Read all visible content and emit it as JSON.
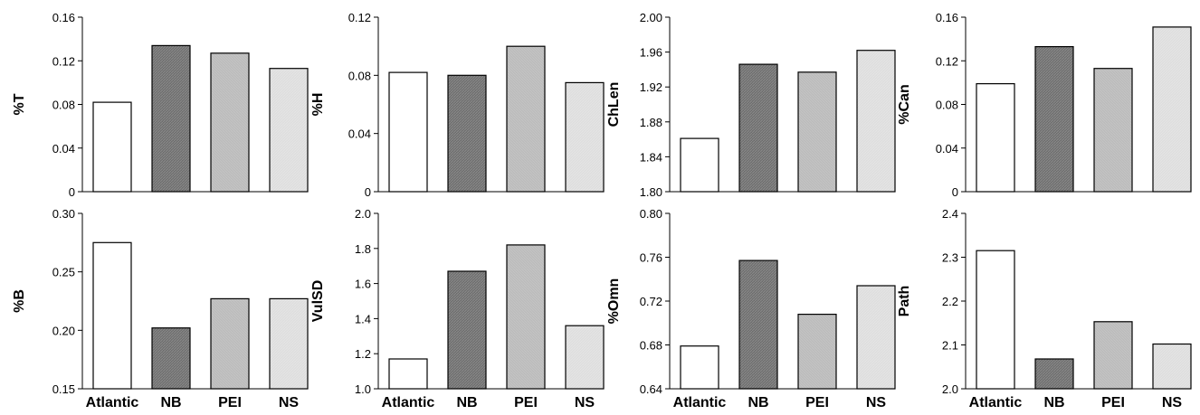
{
  "chart_data": [
    {
      "type": "bar",
      "ylabel": "%T",
      "categories": [
        "Atlantic",
        "NB",
        "PEI",
        "NS"
      ],
      "values": [
        0.082,
        0.134,
        0.127,
        0.113
      ],
      "ylim": [
        0,
        0.16
      ],
      "yticks": [
        "0",
        "0.04",
        "0.08",
        "0.12",
        "0.16"
      ],
      "grid": false
    },
    {
      "type": "bar",
      "ylabel": "%H",
      "categories": [
        "Atlantic",
        "NB",
        "PEI",
        "NS"
      ],
      "values": [
        0.082,
        0.08,
        0.1,
        0.075
      ],
      "ylim": [
        0,
        0.12
      ],
      "yticks": [
        "0",
        "0.04",
        "0.08",
        "0.12"
      ],
      "grid": false
    },
    {
      "type": "bar",
      "ylabel": "ChLen",
      "categories": [
        "Atlantic",
        "NB",
        "PEI",
        "NS"
      ],
      "values": [
        1.861,
        1.946,
        1.937,
        1.962
      ],
      "ylim": [
        1.8,
        2.0
      ],
      "yticks": [
        "1.80",
        "1.84",
        "1.88",
        "1.92",
        "1.96",
        "2.00"
      ],
      "grid": false
    },
    {
      "type": "bar",
      "ylabel": "%Can",
      "categories": [
        "Atlantic",
        "NB",
        "PEI",
        "NS"
      ],
      "values": [
        0.099,
        0.133,
        0.113,
        0.151
      ],
      "ylim": [
        0,
        0.16
      ],
      "yticks": [
        "0",
        "0.04",
        "0.08",
        "0.12",
        "0.16"
      ],
      "grid": false
    },
    {
      "type": "bar",
      "ylabel": "%B",
      "categories": [
        "Atlantic",
        "NB",
        "PEI",
        "NS"
      ],
      "values": [
        0.275,
        0.202,
        0.227,
        0.227
      ],
      "ylim": [
        0.15,
        0.3
      ],
      "yticks": [
        "0.15",
        "0.20",
        "0.25",
        "0.30"
      ],
      "grid": false
    },
    {
      "type": "bar",
      "ylabel": "VulSD",
      "categories": [
        "Atlantic",
        "NB",
        "PEI",
        "NS"
      ],
      "values": [
        1.17,
        1.67,
        1.82,
        1.36
      ],
      "ylim": [
        1.0,
        2.0
      ],
      "yticks": [
        "1.0",
        "1.2",
        "1.4",
        "1.6",
        "1.8",
        "2.0"
      ],
      "grid": false
    },
    {
      "type": "bar",
      "ylabel": "%Omn",
      "categories": [
        "Atlantic",
        "NB",
        "PEI",
        "NS"
      ],
      "values": [
        0.679,
        0.757,
        0.708,
        0.734
      ],
      "ylim": [
        0.64,
        0.8
      ],
      "yticks": [
        "0.64",
        "0.68",
        "0.72",
        "0.76",
        "0.80"
      ],
      "grid": false
    },
    {
      "type": "bar",
      "ylabel": "Path",
      "categories": [
        "Atlantic",
        "NB",
        "PEI",
        "NS"
      ],
      "values": [
        2.315,
        2.068,
        2.153,
        2.102
      ],
      "ylim": [
        2.0,
        2.4
      ],
      "yticks": [
        "2.0",
        "2.1",
        "2.2",
        "2.3",
        "2.4"
      ],
      "grid": false
    }
  ],
  "colors": {
    "bar_fills": [
      "#ffffff",
      "#7a7a7a",
      "#bdbdbd",
      "#e0e0e0"
    ],
    "bar_stroke": "#000000",
    "axis": "#000000"
  }
}
